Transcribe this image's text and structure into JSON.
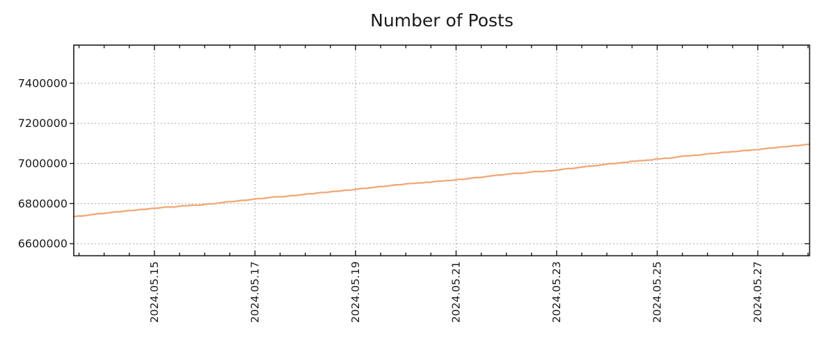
{
  "chart_data": {
    "type": "line",
    "title": "Number of Posts",
    "xlabel": "",
    "ylabel": "",
    "grid": true,
    "legend": "none",
    "background_color": "#ffffff",
    "border_color": "#1a1a1a",
    "grid_color": "#a8a8a8",
    "line_color": "#f2a774",
    "ylim": [
      6540000,
      7590000
    ],
    "y_ticks": [
      6600000,
      6800000,
      7000000,
      7200000,
      7400000
    ],
    "y_tick_labels": [
      "6600000",
      "6800000",
      "7000000",
      "7200000",
      "7400000"
    ],
    "x_start": "2024.05.13 09:30",
    "x_end": "2024.05.28 00:45",
    "x_minor_tick_days": 0.5,
    "x_ticks": [
      {
        "day": 15,
        "label": "2024.05.15"
      },
      {
        "day": 17,
        "label": "2024.05.17"
      },
      {
        "day": 19,
        "label": "2024.05.19"
      },
      {
        "day": 21,
        "label": "2024.05.21"
      },
      {
        "day": 23,
        "label": "2024.05.23"
      },
      {
        "day": 25,
        "label": "2024.05.25"
      },
      {
        "day": 27,
        "label": "2024.05.27"
      }
    ],
    "sample_step_hours": 2,
    "series": [
      {
        "name": "Number of Posts",
        "color": "#f2a774",
        "points": [
          [
            "2024.05.13 09:30",
            6734000
          ],
          [
            "2024.05.14 00:00",
            6752000
          ],
          [
            "2024.05.15 00:00",
            6777000
          ],
          [
            "2024.05.16 00:00",
            6796000
          ],
          [
            "2024.05.17 00:00",
            6822000
          ],
          [
            "2024.05.18 00:00",
            6846000
          ],
          [
            "2024.05.19 00:00",
            6871000
          ],
          [
            "2024.05.20 00:00",
            6898000
          ],
          [
            "2024.05.21 00:00",
            6918000
          ],
          [
            "2024.05.22 00:00",
            6946000
          ],
          [
            "2024.05.23 00:00",
            6967000
          ],
          [
            "2024.05.24 00:00",
            6996000
          ],
          [
            "2024.05.25 00:00",
            7022000
          ],
          [
            "2024.05.26 00:00",
            7047000
          ],
          [
            "2024.05.27 00:00",
            7070000
          ],
          [
            "2024.05.28 00:45",
            7095000
          ]
        ]
      }
    ]
  }
}
